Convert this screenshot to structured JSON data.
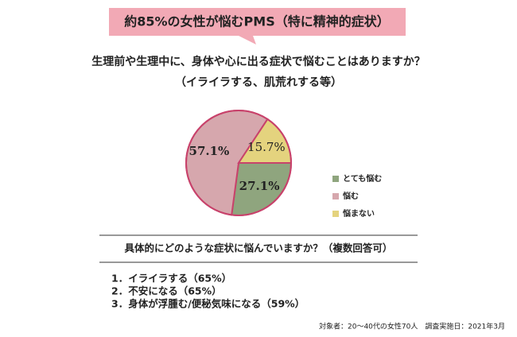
{
  "chart_data": {
    "type": "pie",
    "title": "約85%の女性が悩むPMS（特に精神的症状）",
    "subtitle": [
      "生理前や生理中に、身体や心に出る症状で悩むことはありますか？",
      "（イライラする、肌荒れする等）"
    ],
    "categories": [
      "とても悩む",
      "悩む",
      "悩まない"
    ],
    "values": [
      27.1,
      57.1,
      15.7
    ],
    "value_labels": [
      "27.1%",
      "57.1%",
      "15.7%"
    ],
    "colors": [
      "#8fa57e",
      "#d6a7ad",
      "#e4d37e"
    ],
    "legend": "right"
  },
  "question2": {
    "title": "具体的にどのような症状に悩んでいますか？（複数回答可）",
    "items": [
      "1．イライラする（65%）",
      "2．不安になる（65%）",
      "3．身体が浮腫む/便秘気味になる（59%）"
    ]
  },
  "footnote": "対象者：20～40代の女性70人　調査実施日：2021年3月"
}
